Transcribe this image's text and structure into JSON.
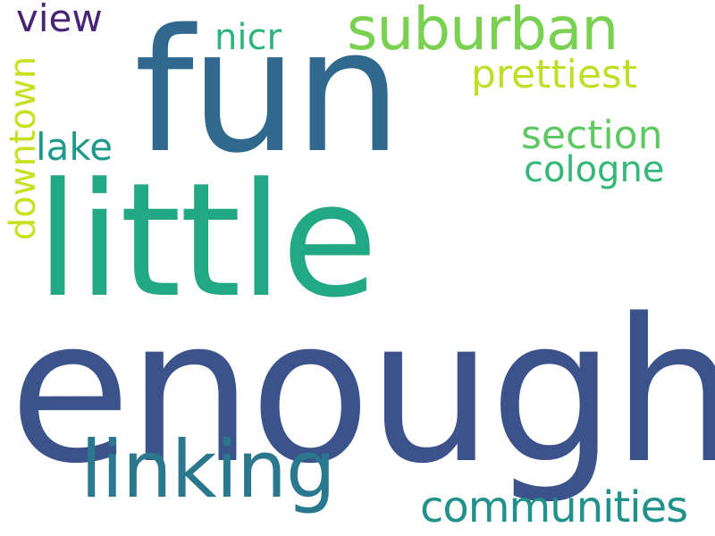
{
  "words": {
    "enough": {
      "text": "enough",
      "color": "#3b528b"
    },
    "little": {
      "text": "little",
      "color": "#22a884"
    },
    "fun": {
      "text": "fun",
      "color": "#31688e"
    },
    "linking": {
      "text": "linking",
      "color": "#2a788e"
    },
    "suburban": {
      "text": "suburban",
      "color": "#7ad151"
    },
    "communities": {
      "text": "communities",
      "color": "#21918c"
    },
    "prettiest": {
      "text": "prettiest",
      "color": "#bddf26"
    },
    "section": {
      "text": "section",
      "color": "#5ec962"
    },
    "cologne": {
      "text": "cologne",
      "color": "#35b779"
    },
    "lake": {
      "text": "lake",
      "color": "#1f9a8a"
    },
    "nicr": {
      "text": "nicr",
      "color": "#2fb47c"
    },
    "view": {
      "text": "view",
      "color": "#482475"
    },
    "downtown": {
      "text": "downtown",
      "color": "#c8e020"
    }
  },
  "background_color": "#ffffff"
}
